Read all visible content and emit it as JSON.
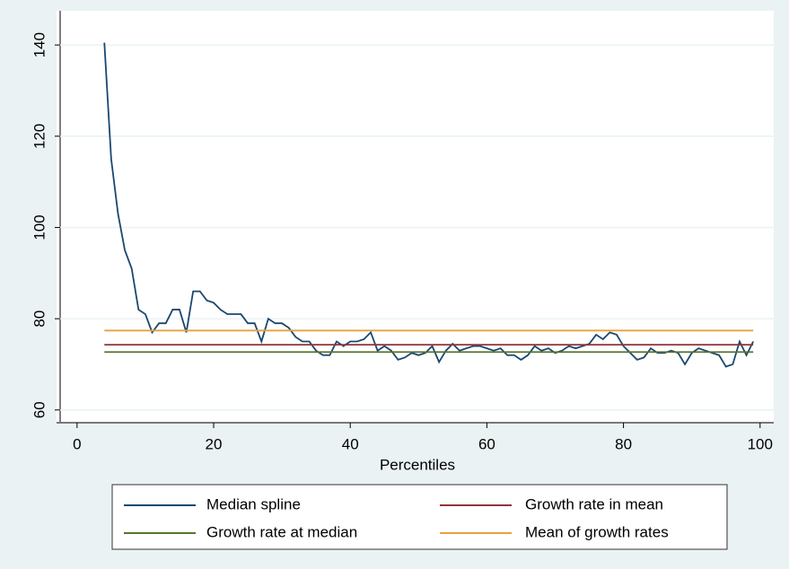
{
  "chart_data": {
    "type": "line",
    "x_label": "Percentiles",
    "xlim": [
      -3,
      102
    ],
    "xticks": [
      0,
      20,
      40,
      60,
      80,
      100
    ],
    "ylim": [
      57.4,
      147.5
    ],
    "yticks": [
      60,
      80,
      100,
      120,
      140
    ],
    "grid": true,
    "series": [
      {
        "name": "Median spline",
        "color": "#1a476f",
        "x": [
          4,
          5,
          6,
          7,
          8,
          9,
          10,
          11,
          12,
          13,
          14,
          15,
          16,
          17,
          18,
          19,
          20,
          21,
          22,
          23,
          24,
          25,
          26,
          27,
          28,
          29,
          30,
          31,
          32,
          33,
          34,
          35,
          36,
          37,
          38,
          39,
          40,
          41,
          42,
          43,
          44,
          45,
          46,
          47,
          48,
          49,
          50,
          51,
          52,
          53,
          54,
          55,
          56,
          57,
          58,
          59,
          60,
          61,
          62,
          63,
          64,
          65,
          66,
          67,
          68,
          69,
          70,
          71,
          72,
          73,
          74,
          75,
          76,
          77,
          78,
          79,
          80,
          81,
          82,
          83,
          84,
          85,
          86,
          87,
          88,
          89,
          90,
          91,
          92,
          93,
          94,
          95,
          96,
          97,
          98,
          99
        ],
        "values": [
          140.5,
          115,
          103,
          95,
          91,
          82,
          81,
          77,
          79,
          79,
          82,
          82,
          77,
          86,
          86,
          84,
          83.5,
          82,
          81,
          81,
          81,
          79,
          79,
          75,
          80,
          79,
          79,
          78,
          76,
          75,
          75,
          73,
          72,
          72,
          75,
          74,
          75,
          75,
          75.5,
          77,
          73,
          74,
          73,
          71,
          71.5,
          72.5,
          72,
          72.5,
          74,
          70.5,
          73,
          74.5,
          73,
          73.5,
          74,
          74,
          73.5,
          73,
          73.5,
          72,
          72,
          71,
          72,
          74,
          73,
          73.5,
          72.5,
          73,
          74,
          73.5,
          74,
          74.5,
          76.5,
          75.5,
          77,
          76.5,
          74,
          72.5,
          71,
          71.5,
          73.5,
          72.5,
          72.5,
          73,
          72.5,
          70,
          72.5,
          73.5,
          73,
          72.5,
          72,
          69.5,
          70,
          75,
          72,
          75
        ]
      },
      {
        "name": "Growth rate in mean",
        "color": "#90353b",
        "x": [
          4,
          99
        ],
        "values": [
          74.3,
          74.3
        ]
      },
      {
        "name": "Growth rate at median",
        "color": "#55752f",
        "x": [
          4,
          99
        ],
        "values": [
          72.7,
          72.7
        ]
      },
      {
        "name": "Mean of growth rates",
        "color": "#e8a13f",
        "x": [
          4,
          99
        ],
        "values": [
          77.4,
          77.4
        ]
      }
    ]
  }
}
